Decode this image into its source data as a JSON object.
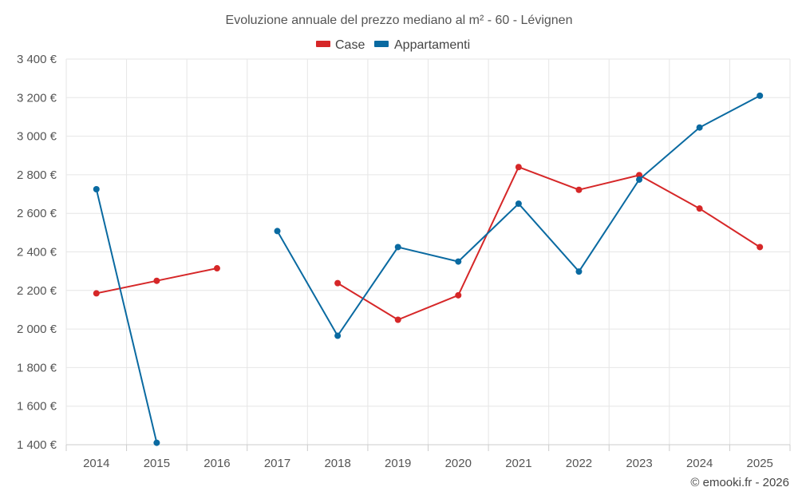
{
  "chart_data": {
    "type": "line",
    "title": "Evoluzione annuale del prezzo mediano al m² - 60 - Lévignen",
    "categories": [
      "2014",
      "2015",
      "2016",
      "2017",
      "2018",
      "2019",
      "2020",
      "2021",
      "2022",
      "2023",
      "2024",
      "2025"
    ],
    "y_ticks": [
      "1 400 €",
      "1 600 €",
      "1 800 €",
      "2 000 €",
      "2 200 €",
      "2 400 €",
      "2 600 €",
      "2 800 €",
      "3 000 €",
      "3 200 €",
      "3 400 €"
    ],
    "ylim": [
      1400,
      3400
    ],
    "grid": true,
    "legend_position": "top-center",
    "series": [
      {
        "name": "Case",
        "color": "#d62728",
        "values": [
          2185,
          2250,
          2315,
          null,
          2238,
          2048,
          2175,
          2840,
          2722,
          2798,
          2625,
          2425
        ]
      },
      {
        "name": "Appartamenti",
        "color": "#0a6aa1",
        "values": [
          2725,
          1410,
          null,
          2508,
          1965,
          2425,
          2350,
          2650,
          2298,
          2775,
          3045,
          3210
        ]
      }
    ],
    "credit": "© emooki.fr - 2026"
  }
}
